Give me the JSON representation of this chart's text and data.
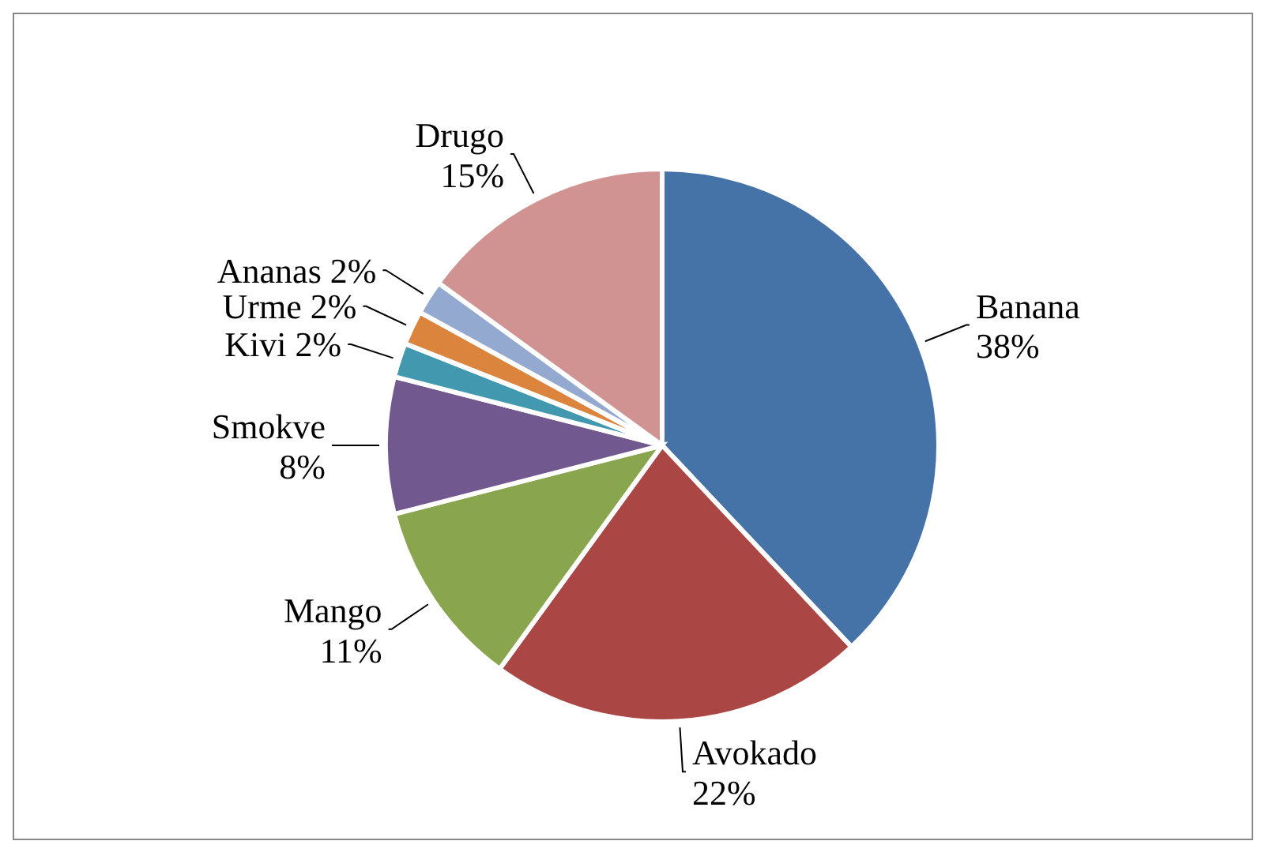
{
  "chart_data": {
    "type": "pie",
    "categories": [
      "Banana",
      "Avokado",
      "Mango",
      "Smokve",
      "Kivi",
      "Urme",
      "Ananas",
      "Drugo"
    ],
    "values": [
      38,
      22,
      11,
      8,
      2,
      2,
      2,
      15
    ],
    "value_labels": [
      "38%",
      "22%",
      "11%",
      "8%",
      "2%",
      "2%",
      "2%",
      "15%"
    ],
    "colors": [
      "#4573a7",
      "#aa4644",
      "#89a54e",
      "#71588f",
      "#4198af",
      "#db843d",
      "#93a9cf",
      "#d19392"
    ]
  }
}
